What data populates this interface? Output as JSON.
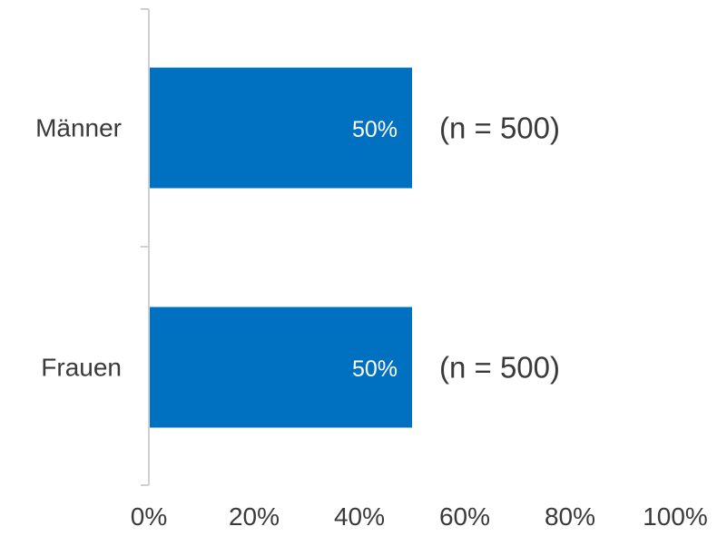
{
  "chart_data": {
    "type": "bar",
    "orientation": "horizontal",
    "categories": [
      "Männer",
      "Frauen"
    ],
    "values": [
      50,
      50
    ],
    "data_labels": [
      "50%",
      "50%"
    ],
    "annotations": [
      "(n = 500)",
      "(n = 500)"
    ],
    "xlim": [
      0,
      100
    ],
    "xticks": [
      0,
      20,
      40,
      60,
      80,
      100
    ],
    "xtick_labels": [
      "0%",
      "20%",
      "40%",
      "60%",
      "80%",
      "100%"
    ],
    "grid": false,
    "legend": "none",
    "title": "",
    "xlabel": "",
    "ylabel": "",
    "colors": {
      "bar": "#0070C0",
      "axis": "#d0d0d0",
      "text": "#3a3a3a",
      "bar_text": "#ffffff"
    }
  }
}
